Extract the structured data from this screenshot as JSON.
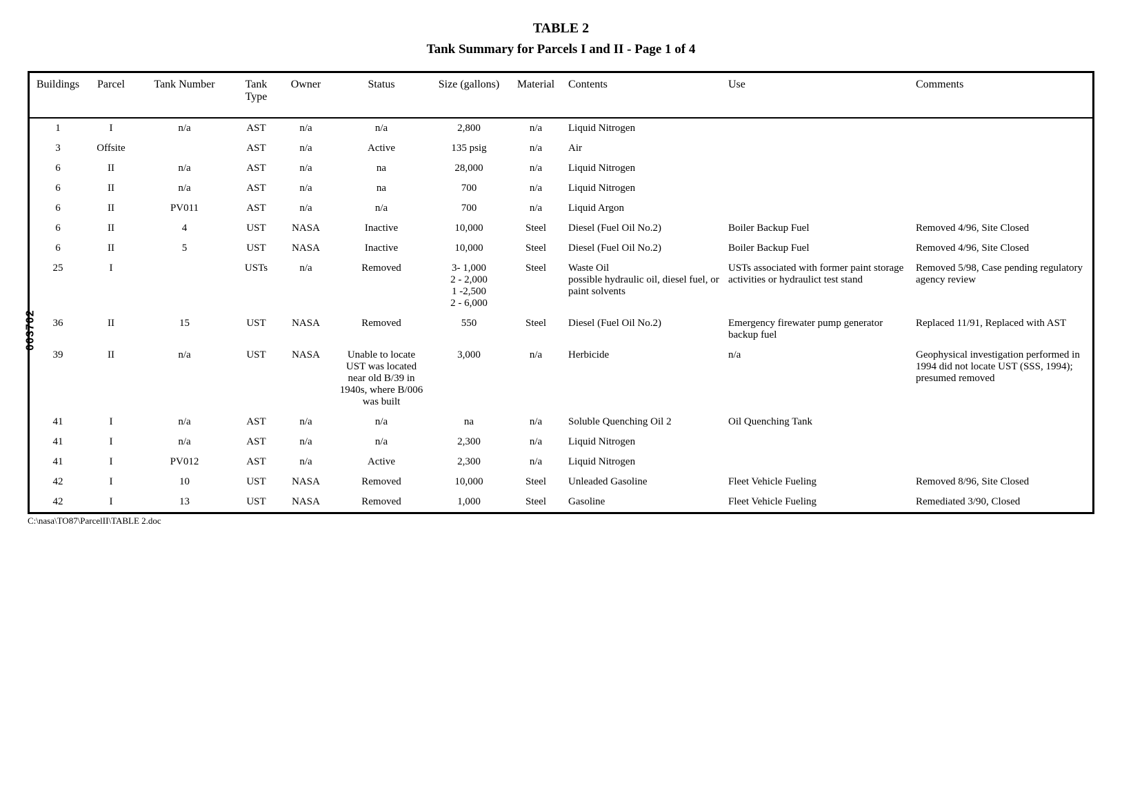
{
  "side_number": "003702",
  "title_line1": "TABLE 2",
  "title_line2": "Tank Summary for Parcels I and II - Page 1 of 4",
  "footer_path": "C:\\nasa\\TO87\\ParcelII\\TABLE 2.doc",
  "columns": [
    {
      "key": "buildings",
      "label": "Buildings",
      "align": "center"
    },
    {
      "key": "parcel",
      "label": "Parcel",
      "align": "center"
    },
    {
      "key": "tank_number",
      "label": "Tank Number",
      "align": "center"
    },
    {
      "key": "tank_type",
      "label": "Tank Type",
      "align": "center"
    },
    {
      "key": "owner",
      "label": "Owner",
      "align": "center"
    },
    {
      "key": "status",
      "label": "Status",
      "align": "center"
    },
    {
      "key": "size",
      "label": "Size (gallons)",
      "align": "center"
    },
    {
      "key": "material",
      "label": "Material",
      "align": "center"
    },
    {
      "key": "contents",
      "label": "Contents",
      "align": "left"
    },
    {
      "key": "use",
      "label": "Use",
      "align": "left"
    },
    {
      "key": "comments",
      "label": "Comments",
      "align": "left"
    }
  ],
  "rows": [
    {
      "buildings": "1",
      "parcel": "I",
      "tank_number": "n/a",
      "tank_type": "AST",
      "owner": "n/a",
      "status": "n/a",
      "size": "2,800",
      "material": "n/a",
      "contents": "Liquid Nitrogen",
      "use": "",
      "comments": ""
    },
    {
      "buildings": "3",
      "parcel": "Offsite",
      "tank_number": "",
      "tank_type": "AST",
      "owner": "n/a",
      "status": "Active",
      "size": "135 psig",
      "material": "n/a",
      "contents": "Air",
      "use": "",
      "comments": ""
    },
    {
      "buildings": "6",
      "parcel": "II",
      "tank_number": "n/a",
      "tank_type": "AST",
      "owner": "n/a",
      "status": "na",
      "size": "28,000",
      "material": "n/a",
      "contents": "Liquid Nitrogen",
      "use": "",
      "comments": ""
    },
    {
      "buildings": "6",
      "parcel": "II",
      "tank_number": "n/a",
      "tank_type": "AST",
      "owner": "n/a",
      "status": "na",
      "size": "700",
      "material": "n/a",
      "contents": "Liquid Nitrogen",
      "use": "",
      "comments": ""
    },
    {
      "buildings": "6",
      "parcel": "II",
      "tank_number": "PV011",
      "tank_type": "AST",
      "owner": "n/a",
      "status": "n/a",
      "size": "700",
      "material": "n/a",
      "contents": "Liquid Argon",
      "use": "",
      "comments": ""
    },
    {
      "buildings": "6",
      "parcel": "II",
      "tank_number": "4",
      "tank_type": "UST",
      "owner": "NASA",
      "status": "Inactive",
      "size": "10,000",
      "material": "Steel",
      "contents": "Diesel  (Fuel Oil No.2)",
      "use": "Boiler Backup Fuel",
      "comments": "Removed 4/96, Site Closed"
    },
    {
      "buildings": "6",
      "parcel": "II",
      "tank_number": "5",
      "tank_type": "UST",
      "owner": "NASA",
      "status": "Inactive",
      "size": "10,000",
      "material": "Steel",
      "contents": "Diesel  (Fuel Oil No.2)",
      "use": "Boiler Backup Fuel",
      "comments": "Removed 4/96, Site Closed"
    },
    {
      "buildings": "25",
      "parcel": "I",
      "tank_number": "",
      "tank_type": "USTs",
      "owner": "n/a",
      "status": "Removed",
      "size": "3- 1,000\n2 - 2,000\n1 -2,500\n2 - 6,000",
      "material": "Steel",
      "contents": "Waste Oil\npossible hydraulic oil, diesel fuel, or paint solvents",
      "use": "USTs associated with former paint storage activities or hydraulict test stand",
      "comments": "Removed 5/98, Case pending regulatory agency review"
    },
    {
      "buildings": "36",
      "parcel": "II",
      "tank_number": "15",
      "tank_type": "UST",
      "owner": "NASA",
      "status": "Removed",
      "size": "550",
      "material": "Steel",
      "contents": "Diesel  (Fuel Oil No.2)",
      "use": "Emergency firewater pump generator backup fuel",
      "comments": "Replaced 11/91, Replaced with AST"
    },
    {
      "buildings": "39",
      "parcel": "II",
      "tank_number": "n/a",
      "tank_type": "UST",
      "owner": "NASA",
      "status": "Unable to locate UST was located near old B/39 in 1940s, where B/006 was built",
      "size": "3,000",
      "material": "n/a",
      "contents": "Herbicide",
      "use": "n/a",
      "comments": "Geophysical investigation performed in 1994 did not locate UST (SSS, 1994); presumed removed"
    },
    {
      "buildings": "41",
      "parcel": "I",
      "tank_number": "n/a",
      "tank_type": "AST",
      "owner": "n/a",
      "status": "n/a",
      "size": "na",
      "material": "n/a",
      "contents": "Soluble Quenching Oil 2",
      "use": "Oil Quenching Tank",
      "comments": ""
    },
    {
      "buildings": "41",
      "parcel": "I",
      "tank_number": "n/a",
      "tank_type": "AST",
      "owner": "n/a",
      "status": "n/a",
      "size": "2,300",
      "material": "n/a",
      "contents": "Liquid Nitrogen",
      "use": "",
      "comments": ""
    },
    {
      "buildings": "41",
      "parcel": "I",
      "tank_number": "PV012",
      "tank_type": "AST",
      "owner": "n/a",
      "status": "Active",
      "size": "2,300",
      "material": "n/a",
      "contents": "Liquid Nitrogen",
      "use": "",
      "comments": ""
    },
    {
      "buildings": "42",
      "parcel": "I",
      "tank_number": "10",
      "tank_type": "UST",
      "owner": "NASA",
      "status": "Removed",
      "size": "10,000",
      "material": "Steel",
      "contents": "Unleaded Gasoline",
      "use": "Fleet Vehicle Fueling",
      "comments": "Removed 8/96, Site Closed"
    },
    {
      "buildings": "42",
      "parcel": "I",
      "tank_number": "13",
      "tank_type": "UST",
      "owner": "NASA",
      "status": "Removed",
      "size": "1,000",
      "material": "Steel",
      "contents": "Gasoline",
      "use": "Fleet Vehicle Fueling",
      "comments": "Remediated 3/90, Closed"
    }
  ]
}
